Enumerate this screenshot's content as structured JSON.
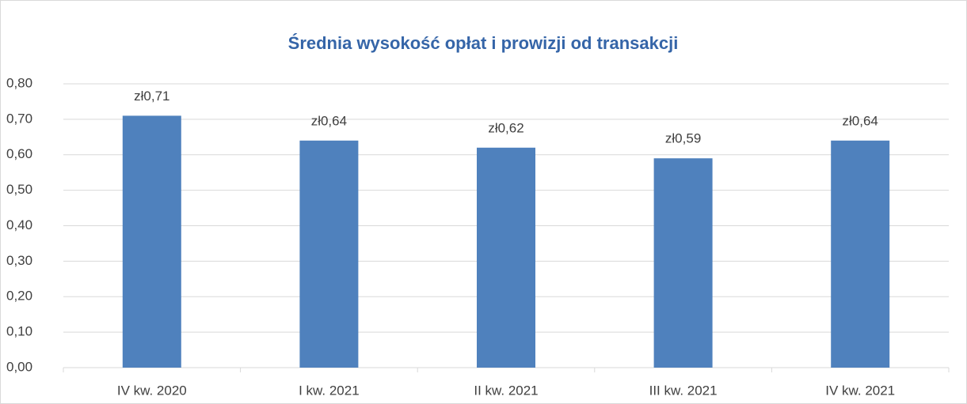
{
  "chart_data": {
    "type": "bar",
    "title": "Średnia wysokość opłat i prowizji od transakcji",
    "categories": [
      "IV kw. 2020",
      "I kw. 2021",
      "II kw. 2021",
      "III kw. 2021",
      "IV kw. 2021"
    ],
    "values": [
      0.71,
      0.64,
      0.62,
      0.59,
      0.64
    ],
    "value_labels": [
      "zł0,71",
      "zł0,64",
      "zł0,62",
      "zł0,59",
      "zł0,64"
    ],
    "color": "#4f81bd",
    "ylim": [
      0,
      0.8
    ],
    "yticks": [
      {
        "value": 0,
        "label": "0,00"
      },
      {
        "value": 0.1,
        "label": "0,10"
      },
      {
        "value": 0.2,
        "label": "0,20"
      },
      {
        "value": 0.3,
        "label": "0,30"
      },
      {
        "value": 0.4,
        "label": "0,40"
      },
      {
        "value": 0.5,
        "label": "0,50"
      },
      {
        "value": 0.6,
        "label": "0,60"
      },
      {
        "value": 0.7,
        "label": "0,70"
      },
      {
        "value": 0.8,
        "label": "0,80"
      }
    ],
    "grid": true
  }
}
